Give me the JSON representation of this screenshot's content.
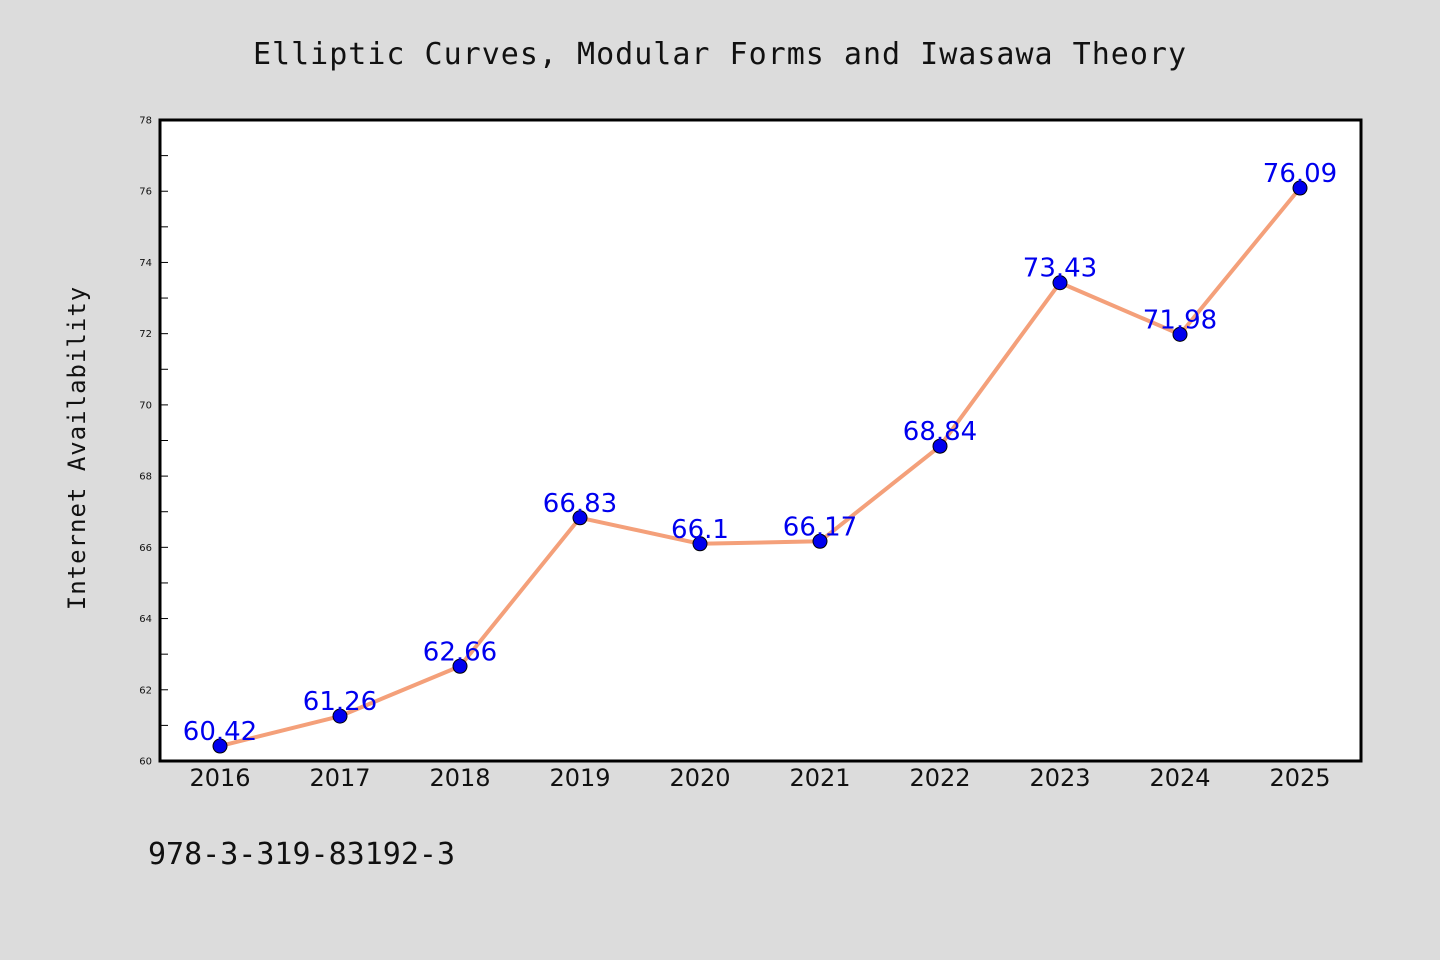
{
  "chart_data": {
    "type": "line",
    "title": "Elliptic Curves, Modular Forms and Iwasawa Theory",
    "xlabel": "",
    "ylabel": "Internet Availability",
    "categories": [
      "2016",
      "2017",
      "2018",
      "2019",
      "2020",
      "2021",
      "2022",
      "2023",
      "2024",
      "2025"
    ],
    "series": [
      {
        "values": [
          60.42,
          61.26,
          62.66,
          66.83,
          66.1,
          66.17,
          68.84,
          73.43,
          71.98,
          76.09
        ],
        "labels": [
          "60.42",
          "61.26",
          "62.66",
          "66.83",
          "66.1",
          "66.17",
          "68.84",
          "73.43",
          "71.98",
          "76.09"
        ],
        "line_color": "#f4a07a",
        "marker_color": "#0000ee"
      }
    ],
    "ylim": [
      60,
      78
    ],
    "yticks": [
      "60",
      "62",
      "64",
      "66",
      "68",
      "70",
      "72",
      "74",
      "76",
      "78"
    ],
    "grid": false,
    "legend": "none"
  },
  "footnote": "978-3-319-83192-3"
}
